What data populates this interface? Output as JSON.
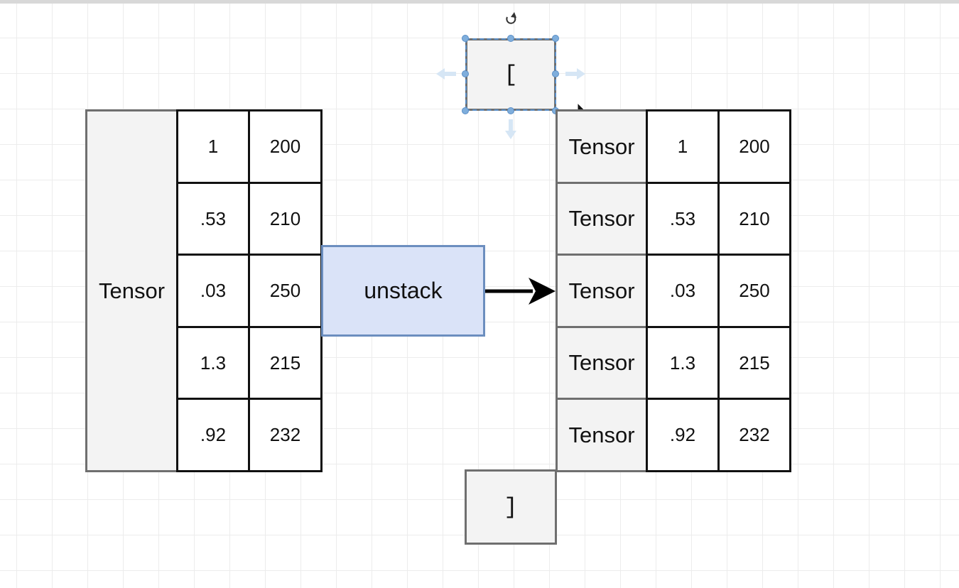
{
  "left_tensor": {
    "label": "Tensor",
    "rows": [
      [
        "1",
        "200"
      ],
      [
        ".53",
        "210"
      ],
      [
        ".03",
        "250"
      ],
      [
        "1.3",
        "215"
      ],
      [
        ".92",
        "232"
      ]
    ]
  },
  "operation": {
    "label": "unstack"
  },
  "result": {
    "open_bracket": "[",
    "close_bracket": "]",
    "rows": [
      {
        "label": "Tensor",
        "values": [
          "1",
          "200"
        ]
      },
      {
        "label": "Tensor",
        "values": [
          ".53",
          "210"
        ]
      },
      {
        "label": "Tensor",
        "values": [
          ".03",
          "250"
        ]
      },
      {
        "label": "Tensor",
        "values": [
          "1.3",
          "215"
        ]
      },
      {
        "label": "Tensor",
        "values": [
          ".92",
          "232"
        ]
      }
    ]
  },
  "colors": {
    "operation_fill": "#dae3f8",
    "operation_border": "#6c8ebf",
    "label_fill": "#f3f3f3",
    "selection_handle": "#7faedc"
  }
}
